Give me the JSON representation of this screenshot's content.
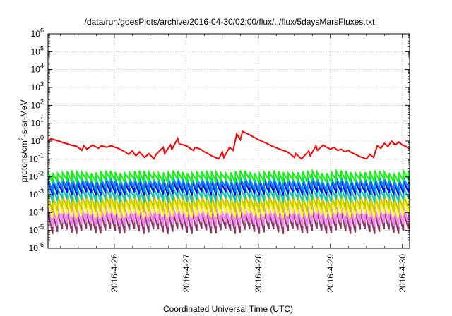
{
  "chart_data": {
    "type": "line",
    "title": "/data/run/goesPlots/archive/2016-04-30/02:00/flux/../flux/5daysMarsFluxes.txt",
    "xlabel": "Coordinated Universal Time (UTC)",
    "ylabel_parts": [
      "protons/cm",
      "2",
      "-s-sr-MeV"
    ],
    "x_range_days": [
      25.08,
      30.1
    ],
    "x_ticks": [
      {
        "day": 26,
        "label": "2016-4-26"
      },
      {
        "day": 27,
        "label": "2016-4-27"
      },
      {
        "day": 28,
        "label": "2016-4-28"
      },
      {
        "day": 29,
        "label": "2016-4-29"
      },
      {
        "day": 30,
        "label": "2016-4-30"
      }
    ],
    "y_scale": "log",
    "ylim_exp": [
      -6,
      6
    ],
    "y_ticks": [
      {
        "exp": -6,
        "base": "10",
        "sup": "-6"
      },
      {
        "exp": -5,
        "base": "10",
        "sup": "-5"
      },
      {
        "exp": -4,
        "base": "10",
        "sup": "-4"
      },
      {
        "exp": -3,
        "base": "10",
        "sup": "-3"
      },
      {
        "exp": -2,
        "base": "10",
        "sup": "-2"
      },
      {
        "exp": -1,
        "base": "10",
        "sup": "-1"
      },
      {
        "exp": 0,
        "base": "10",
        "sup": "0"
      },
      {
        "exp": 1,
        "base": "10",
        "sup": "1"
      },
      {
        "exp": 2,
        "base": "10",
        "sup": "2"
      },
      {
        "exp": 3,
        "base": "10",
        "sup": "3"
      },
      {
        "exp": 4,
        "base": "10",
        "sup": "4"
      },
      {
        "exp": 5,
        "base": "10",
        "sup": "5"
      },
      {
        "exp": 6,
        "base": "10",
        "sup": "6"
      }
    ],
    "series": [
      {
        "color": "#ff0000",
        "points": [
          [
            25.08,
            1.0
          ],
          [
            25.12,
            1.35
          ],
          [
            25.2,
            1.1
          ],
          [
            25.3,
            0.8
          ],
          [
            25.4,
            0.6
          ],
          [
            25.48,
            0.5
          ],
          [
            25.55,
            0.3
          ],
          [
            25.58,
            0.55
          ],
          [
            25.62,
            0.35
          ],
          [
            25.7,
            0.6
          ],
          [
            25.78,
            0.4
          ],
          [
            25.82,
            0.55
          ],
          [
            25.9,
            0.45
          ],
          [
            25.95,
            0.55
          ],
          [
            26.05,
            0.4
          ],
          [
            26.15,
            0.25
          ],
          [
            26.2,
            0.18
          ],
          [
            26.25,
            0.28
          ],
          [
            26.3,
            0.15
          ],
          [
            26.35,
            0.25
          ],
          [
            26.42,
            0.12
          ],
          [
            26.48,
            0.2
          ],
          [
            26.55,
            0.1
          ],
          [
            26.58,
            0.18
          ],
          [
            26.68,
            0.45
          ],
          [
            26.7,
            0.2
          ],
          [
            26.78,
            0.6
          ],
          [
            26.8,
            0.35
          ],
          [
            26.88,
            1.4
          ],
          [
            26.9,
            0.7
          ],
          [
            27.0,
            0.55
          ],
          [
            27.05,
            0.4
          ],
          [
            27.1,
            0.3
          ],
          [
            27.12,
            0.45
          ],
          [
            27.2,
            0.35
          ],
          [
            27.25,
            0.25
          ],
          [
            27.3,
            0.2
          ],
          [
            27.35,
            0.15
          ],
          [
            27.45,
            0.1
          ],
          [
            27.5,
            0.25
          ],
          [
            27.52,
            0.12
          ],
          [
            27.6,
            0.45
          ],
          [
            27.65,
            0.3
          ],
          [
            27.7,
            2.5
          ],
          [
            27.75,
            1.2
          ],
          [
            27.78,
            3.5
          ],
          [
            27.9,
            2.0
          ],
          [
            28.0,
            1.2
          ],
          [
            28.1,
            0.8
          ],
          [
            28.2,
            0.5
          ],
          [
            28.3,
            0.35
          ],
          [
            28.4,
            0.25
          ],
          [
            28.45,
            0.18
          ],
          [
            28.5,
            0.12
          ],
          [
            28.52,
            0.2
          ],
          [
            28.6,
            0.1
          ],
          [
            28.7,
            0.28
          ],
          [
            28.72,
            0.15
          ],
          [
            28.8,
            0.55
          ],
          [
            28.82,
            0.3
          ],
          [
            28.9,
            0.6
          ],
          [
            28.95,
            0.45
          ],
          [
            29.0,
            0.35
          ],
          [
            29.05,
            0.45
          ],
          [
            29.1,
            0.3
          ],
          [
            29.15,
            0.35
          ],
          [
            29.2,
            0.25
          ],
          [
            29.25,
            0.3
          ],
          [
            29.3,
            0.22
          ],
          [
            29.35,
            0.18
          ],
          [
            29.42,
            0.13
          ],
          [
            29.5,
            0.1
          ],
          [
            29.55,
            0.18
          ],
          [
            29.6,
            0.12
          ],
          [
            29.65,
            0.55
          ],
          [
            29.7,
            0.4
          ],
          [
            29.75,
            0.75
          ],
          [
            29.8,
            0.5
          ],
          [
            29.85,
            1.0
          ],
          [
            29.9,
            0.6
          ],
          [
            29.95,
            0.9
          ],
          [
            30.0,
            0.6
          ],
          [
            30.05,
            0.5
          ],
          [
            30.1,
            0.35
          ]
        ]
      },
      {
        "color": "#00ff00",
        "sawtooth": {
          "period": 0.0667,
          "peak_log": [
            -1.65,
            -1.8
          ],
          "trough_log": [
            -2.15,
            -2.35
          ]
        }
      },
      {
        "color": "#0088ff",
        "sawtooth": {
          "period": 0.0667,
          "peak_log": [
            -2.0,
            -2.15
          ],
          "trough_log": [
            -2.6,
            -2.85
          ]
        }
      },
      {
        "color": "#0000ff",
        "sawtooth": {
          "period": 0.0667,
          "peak_log": [
            -2.2,
            -2.3
          ],
          "trough_log": [
            -2.85,
            -3.05
          ]
        }
      },
      {
        "color": "#00c8c8",
        "sawtooth": {
          "period": 0.0667,
          "peak_log": [
            -2.55,
            -2.65
          ],
          "trough_log": [
            -3.2,
            -3.45
          ]
        }
      },
      {
        "color": "#c8c800",
        "sawtooth": {
          "period": 0.0667,
          "peak_log": [
            -2.95,
            -3.05
          ],
          "trough_log": [
            -3.75,
            -4.0
          ]
        }
      },
      {
        "color": "#ffff00",
        "sawtooth": {
          "period": 0.0667,
          "peak_log": [
            -3.2,
            -3.3
          ],
          "trough_log": [
            -4.05,
            -4.3
          ]
        }
      },
      {
        "color": "#ff80ff",
        "sawtooth": {
          "period": 0.0667,
          "peak_log": [
            -3.65,
            -3.75
          ],
          "trough_log": [
            -4.55,
            -4.8
          ]
        }
      },
      {
        "color": "#8b3a62",
        "sawtooth": {
          "period": 0.0667,
          "peak_log": [
            -3.95,
            -4.05
          ],
          "trough_log": [
            -4.9,
            -5.2
          ]
        }
      }
    ],
    "grid": true,
    "legend": "none"
  }
}
